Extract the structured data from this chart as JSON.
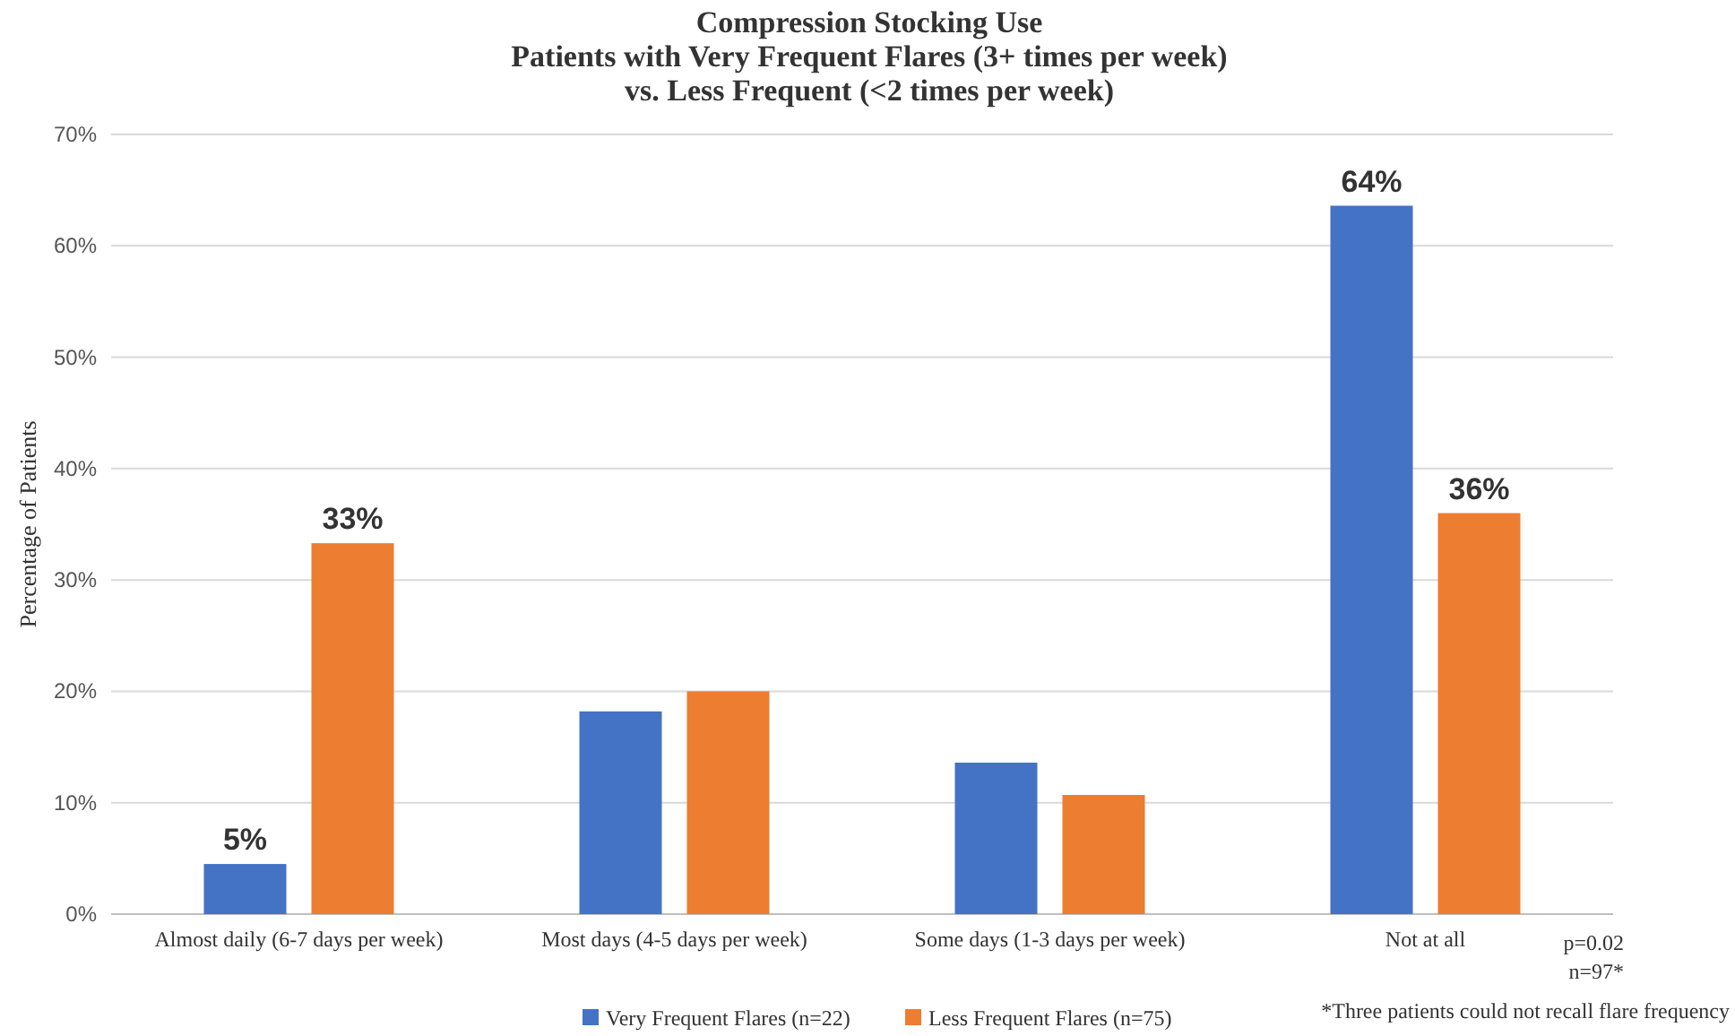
{
  "chart_data": {
    "type": "bar",
    "title": "Compression Stocking Use\nPatients with Very Frequent Flares (3+ times per week)\nvs. Less Frequent (<2 times per week)",
    "ylabel": "Percentage of Patients",
    "categories": [
      "Almost daily (6-7 days per week)",
      "Most days (4-5 days per week)",
      "Some days (1-3 days per week)",
      "Not at all"
    ],
    "series": [
      {
        "name": "Very Frequent Flares (n=22)",
        "color": "#4472c4",
        "values": [
          4.5,
          18.2,
          13.6,
          63.6
        ],
        "value_labels": [
          "5%",
          null,
          null,
          "64%"
        ]
      },
      {
        "name": "Less Frequent Flares (n=75)",
        "color": "#ed7d31",
        "values": [
          33.3,
          20,
          10.7,
          36
        ],
        "value_labels": [
          "33%",
          null,
          null,
          "36%"
        ]
      }
    ],
    "ylim": [
      0,
      70
    ],
    "yticks": [
      {
        "value": 0,
        "label": "0%"
      },
      {
        "value": 10,
        "label": "10%"
      },
      {
        "value": 20,
        "label": "20%"
      },
      {
        "value": 30,
        "label": "30%"
      },
      {
        "value": 40,
        "label": "40%"
      },
      {
        "value": 50,
        "label": "50%"
      },
      {
        "value": 60,
        "label": "60%"
      },
      {
        "value": 70,
        "label": "70%"
      }
    ],
    "grid": "y",
    "legend": "bottom",
    "annotations": [
      "p=0.02",
      "n=97*",
      "*Three patients could not recall flare frequency"
    ]
  }
}
